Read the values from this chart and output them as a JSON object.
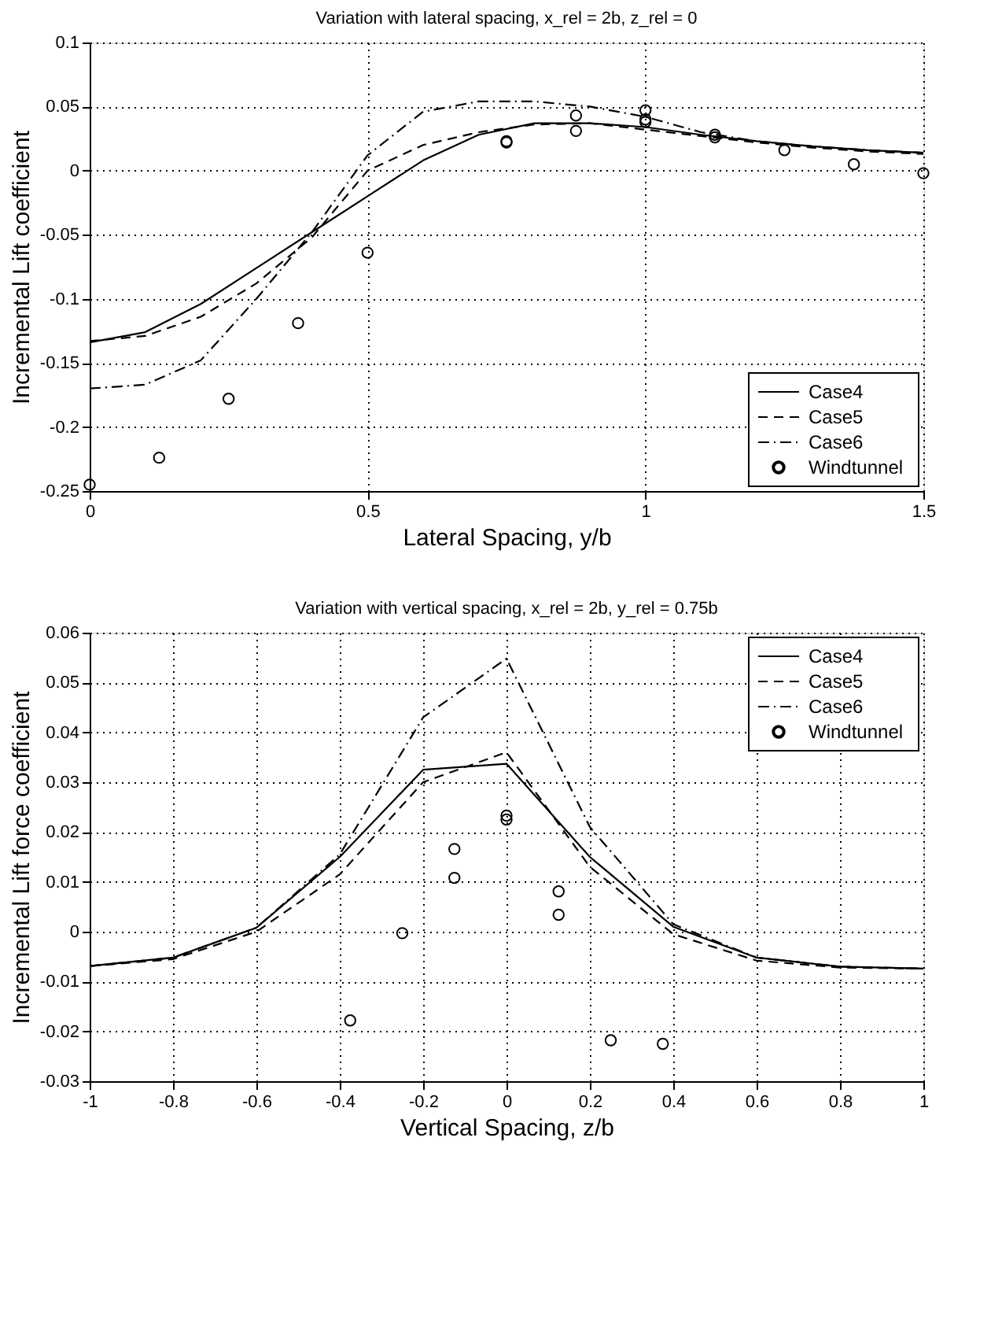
{
  "chart_data": [
    {
      "type": "line",
      "title": "Variation with lateral spacing, x_rel = 2b, z_rel = 0",
      "xlabel": "Lateral Spacing, y/b",
      "ylabel": "Incremental Lift coefficient",
      "xlim": [
        0,
        1.5
      ],
      "xticks": [
        0,
        0.5,
        1,
        1.5
      ],
      "ylim": [
        -0.25,
        0.1
      ],
      "yticks": [
        -0.25,
        -0.2,
        -0.15,
        -0.1,
        -0.05,
        0,
        0.05,
        0.1
      ],
      "grid": true,
      "legend": "bottom right",
      "series": [
        {
          "name": "Case4",
          "color": "#000000",
          "line_style": "solid",
          "x": [
            0,
            0.1,
            0.2,
            0.3,
            0.4,
            0.5,
            0.6,
            0.7,
            0.8,
            0.9,
            1.0,
            1.1,
            1.2,
            1.3,
            1.4,
            1.5
          ],
          "values": [
            -0.134,
            -0.126,
            -0.104,
            -0.076,
            -0.048,
            -0.02,
            0.008,
            0.028,
            0.037,
            0.037,
            0.034,
            0.028,
            0.023,
            0.019,
            0.016,
            0.014
          ]
        },
        {
          "name": "Case5",
          "color": "#000000",
          "line_style": "dashed",
          "x": [
            0,
            0.1,
            0.2,
            0.3,
            0.4,
            0.5,
            0.6,
            0.7,
            0.8,
            0.9,
            1.0,
            1.1,
            1.2,
            1.3,
            1.4,
            1.5
          ],
          "values": [
            -0.133,
            -0.129,
            -0.114,
            -0.088,
            -0.052,
            0.0,
            0.02,
            0.03,
            0.036,
            0.037,
            0.032,
            0.027,
            0.022,
            0.018,
            0.015,
            0.013
          ]
        },
        {
          "name": "Case6",
          "color": "#000000",
          "line_style": "dashdot",
          "x": [
            0,
            0.1,
            0.2,
            0.3,
            0.4,
            0.5,
            0.6,
            0.7,
            0.8,
            0.9,
            1.0,
            1.1,
            1.2,
            1.3,
            1.4,
            1.5
          ],
          "values": [
            -0.17,
            -0.167,
            -0.148,
            -0.1,
            -0.048,
            0.012,
            0.046,
            0.054,
            0.054,
            0.05,
            0.042,
            0.03,
            0.023,
            0.019,
            0.016,
            0.014
          ]
        },
        {
          "name": "Windtunnel",
          "type": "scatter",
          "marker": "circle",
          "color": "#000000",
          "x": [
            0,
            0.125,
            0.25,
            0.375,
            0.5,
            0.75,
            0.75,
            0.875,
            0.875,
            1.0,
            1.0,
            1.0,
            1.125,
            1.125,
            1.25,
            1.375,
            1.5
          ],
          "values": [
            -0.245,
            -0.224,
            -0.178,
            -0.119,
            -0.064,
            0.023,
            0.022,
            0.043,
            0.031,
            0.047,
            0.04,
            0.038,
            0.028,
            0.026,
            0.016,
            0.005,
            -0.002
          ]
        }
      ]
    },
    {
      "type": "line",
      "title": "Variation with vertical spacing, x_rel = 2b, y_rel = 0.75b",
      "xlabel": "Vertical Spacing, z/b",
      "ylabel": "Incremental Lift force coefficient",
      "xlim": [
        -1,
        1
      ],
      "xticks": [
        -1,
        -0.8,
        -0.6,
        -0.4,
        -0.2,
        0,
        0.2,
        0.4,
        0.6,
        0.8,
        1
      ],
      "ylim": [
        -0.03,
        0.06
      ],
      "yticks": [
        -0.03,
        -0.02,
        -0.01,
        0,
        0.01,
        0.02,
        0.03,
        0.04,
        0.05,
        0.06
      ],
      "grid": true,
      "legend": "top right",
      "series": [
        {
          "name": "Case4",
          "color": "#000000",
          "line_style": "solid",
          "x": [
            -1,
            -0.8,
            -0.6,
            -0.4,
            -0.2,
            0,
            0.2,
            0.4,
            0.6,
            0.8,
            1
          ],
          "values": [
            -0.0069,
            -0.0052,
            0.0008,
            0.015,
            0.0325,
            0.0337,
            0.015,
            0.001,
            -0.0052,
            -0.007,
            -0.0074
          ]
        },
        {
          "name": "Case5",
          "color": "#000000",
          "line_style": "dashed",
          "x": [
            -1,
            -0.8,
            -0.6,
            -0.4,
            -0.2,
            0,
            0.2,
            0.4,
            0.6,
            0.8,
            1
          ],
          "values": [
            -0.0069,
            -0.0055,
            0.0,
            0.0115,
            0.03,
            0.036,
            0.013,
            -0.0005,
            -0.0058,
            -0.0072,
            -0.0074
          ]
        },
        {
          "name": "Case6",
          "color": "#000000",
          "line_style": "dashdot",
          "x": [
            -1,
            -0.8,
            -0.6,
            -0.4,
            -0.2,
            0,
            0.2,
            0.4,
            0.6,
            0.8,
            1
          ],
          "values": [
            -0.0069,
            -0.0052,
            0.0008,
            0.0155,
            0.043,
            0.0548,
            0.021,
            0.0015,
            -0.0052,
            -0.007,
            -0.0074
          ]
        },
        {
          "name": "Windtunnel",
          "type": "scatter",
          "marker": "circle",
          "color": "#000000",
          "x": [
            -0.375,
            -0.25,
            -0.125,
            -0.125,
            0,
            0,
            0.125,
            0.125,
            0.25,
            0.375
          ],
          "values": [
            -0.0178,
            -0.0003,
            0.0166,
            0.0108,
            0.0233,
            0.0225,
            0.0081,
            0.0034,
            -0.0218,
            -0.0225
          ]
        }
      ]
    }
  ]
}
